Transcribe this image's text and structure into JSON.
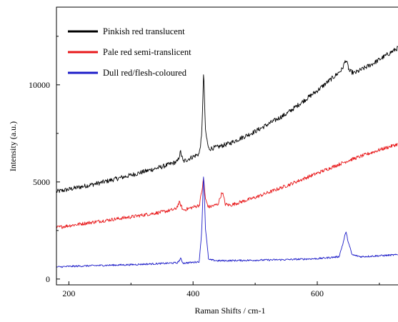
{
  "chart_data": {
    "type": "line",
    "title": "",
    "xlabel": "Raman Shifts / cm-1",
    "ylabel": "Intensity (a.u.)",
    "xlim": [
      180,
      730
    ],
    "ylim": [
      -300,
      14000
    ],
    "xticks": [
      200,
      400,
      600
    ],
    "yticks": [
      0,
      5000,
      10000
    ],
    "grid": false,
    "legend_position": "top-left",
    "series": [
      {
        "name": "Pinkish red translucent",
        "color": "#000000",
        "noise": 120,
        "points": [
          [
            180,
            4500
          ],
          [
            200,
            4620
          ],
          [
            250,
            4950
          ],
          [
            300,
            5350
          ],
          [
            350,
            5780
          ],
          [
            375,
            6050
          ],
          [
            380,
            6550
          ],
          [
            384,
            6050
          ],
          [
            400,
            6300
          ],
          [
            410,
            6450
          ],
          [
            414,
            7400
          ],
          [
            417,
            10700
          ],
          [
            420,
            7600
          ],
          [
            425,
            6700
          ],
          [
            440,
            6800
          ],
          [
            460,
            7000
          ],
          [
            500,
            7600
          ],
          [
            550,
            8500
          ],
          [
            600,
            9700
          ],
          [
            630,
            10500
          ],
          [
            640,
            10800
          ],
          [
            646,
            11300
          ],
          [
            652,
            10700
          ],
          [
            660,
            10600
          ],
          [
            690,
            11100
          ],
          [
            730,
            11900
          ]
        ]
      },
      {
        "name": "Pale red semi-translicent",
        "color": "#e8191b",
        "noise": 90,
        "points": [
          [
            180,
            2650
          ],
          [
            200,
            2750
          ],
          [
            250,
            2980
          ],
          [
            300,
            3200
          ],
          [
            350,
            3450
          ],
          [
            372,
            3600
          ],
          [
            378,
            3950
          ],
          [
            384,
            3550
          ],
          [
            400,
            3700
          ],
          [
            410,
            3800
          ],
          [
            415,
            4700
          ],
          [
            417,
            5200
          ],
          [
            420,
            4100
          ],
          [
            425,
            3700
          ],
          [
            440,
            3850
          ],
          [
            447,
            4500
          ],
          [
            452,
            3850
          ],
          [
            460,
            3800
          ],
          [
            500,
            4200
          ],
          [
            550,
            4800
          ],
          [
            600,
            5450
          ],
          [
            650,
            6100
          ],
          [
            700,
            6650
          ],
          [
            730,
            6950
          ]
        ]
      },
      {
        "name": "Dull red/flesh-coloured",
        "color": "#1c1cc8",
        "noise": 45,
        "points": [
          [
            180,
            620
          ],
          [
            200,
            650
          ],
          [
            250,
            700
          ],
          [
            300,
            740
          ],
          [
            350,
            800
          ],
          [
            375,
            840
          ],
          [
            380,
            1050
          ],
          [
            384,
            820
          ],
          [
            400,
            860
          ],
          [
            410,
            900
          ],
          [
            414,
            2500
          ],
          [
            417,
            5500
          ],
          [
            420,
            2600
          ],
          [
            425,
            1000
          ],
          [
            440,
            940
          ],
          [
            500,
            970
          ],
          [
            550,
            1000
          ],
          [
            600,
            1050
          ],
          [
            635,
            1150
          ],
          [
            642,
            1900
          ],
          [
            646,
            2450
          ],
          [
            650,
            1900
          ],
          [
            656,
            1250
          ],
          [
            670,
            1150
          ],
          [
            700,
            1200
          ],
          [
            730,
            1250
          ]
        ]
      }
    ]
  }
}
